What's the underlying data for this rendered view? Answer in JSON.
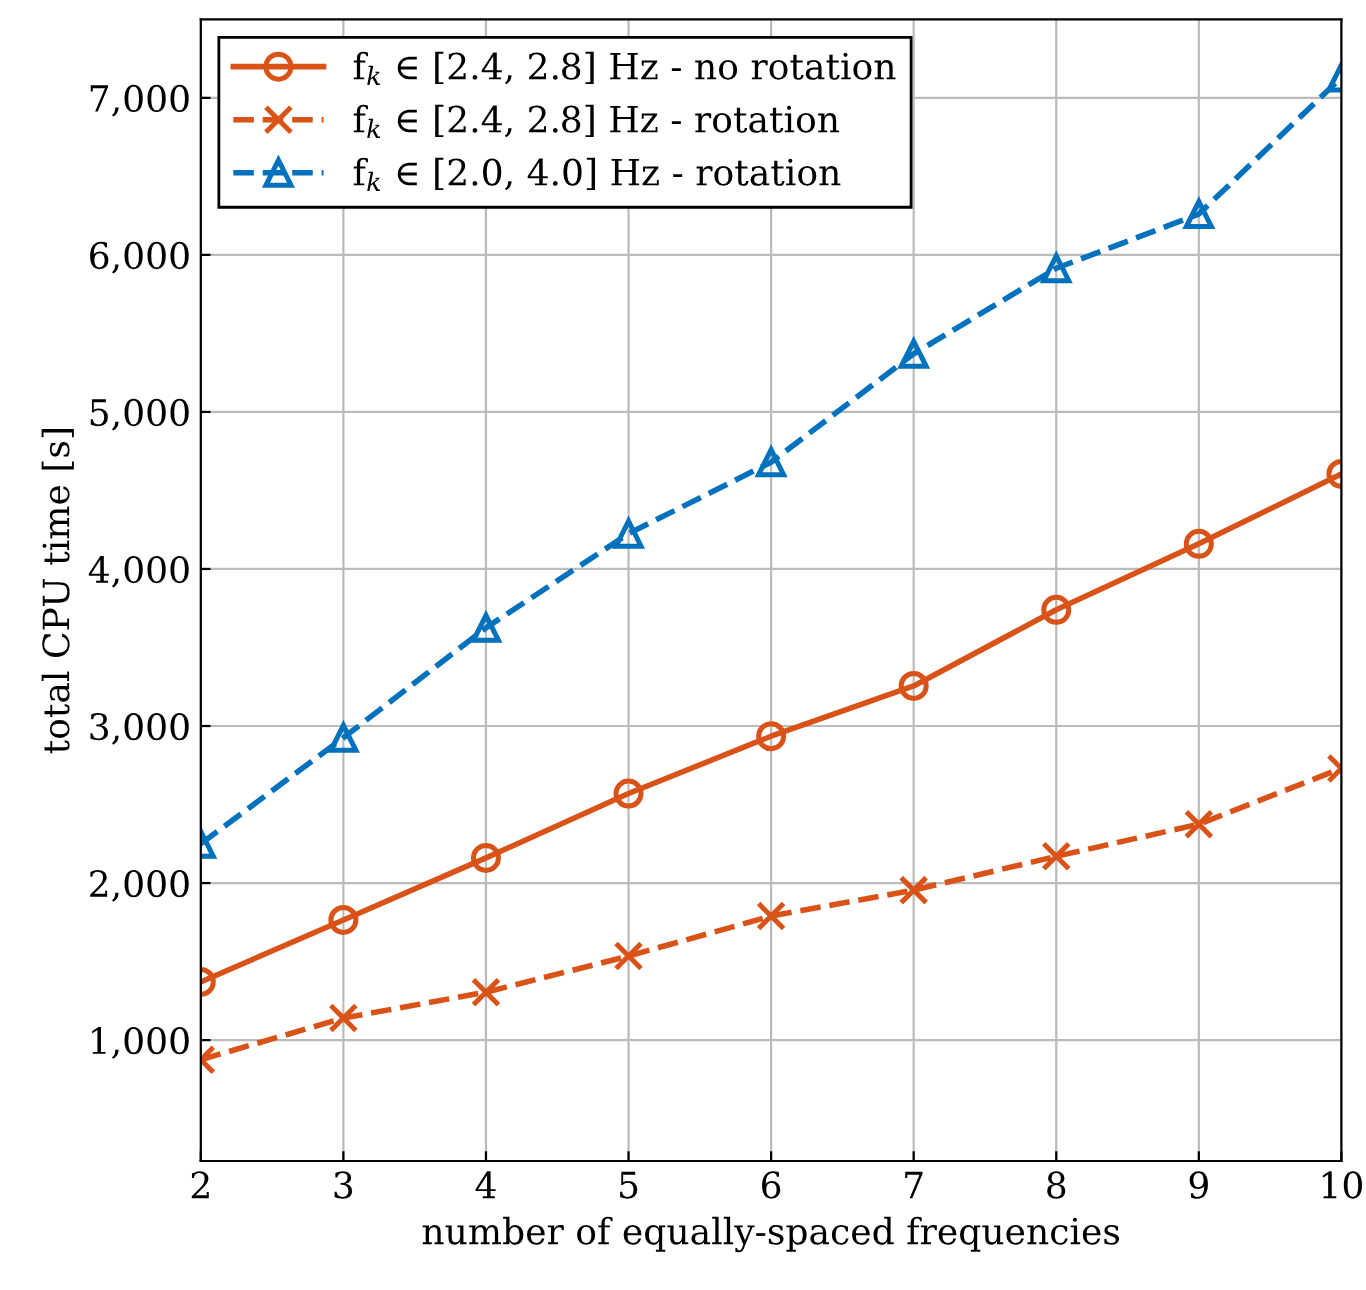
{
  "chart_data": {
    "type": "line",
    "xlabel": "number of equally-spaced frequencies",
    "ylabel": "total CPU time [s]",
    "x": [
      2,
      3,
      4,
      5,
      6,
      7,
      8,
      9,
      10
    ],
    "series": [
      {
        "name": "f$_{k}$ ∈ [2.4, 2.8] Hz - no rotation",
        "color": "#d95319",
        "marker": "circle",
        "line_style": "solid",
        "values": [
          1370,
          1765,
          2160,
          2570,
          2935,
          3255,
          3740,
          4160,
          4605
        ]
      },
      {
        "name": "f$_{k}$ ∈ [2.4, 2.8] Hz - rotation",
        "color": "#d95319",
        "marker": "cross",
        "line_style": "dashed",
        "values": [
          875,
          1140,
          1305,
          1535,
          1790,
          1955,
          2170,
          2375,
          2730
        ]
      },
      {
        "name": "f$_{k}$ ∈ [2.0, 4.0] Hz - rotation",
        "color": "#0072bd",
        "marker": "triangle",
        "line_style": "dashed",
        "values": [
          2250,
          2925,
          3625,
          4225,
          4680,
          5370,
          5915,
          6260,
          7130
        ]
      }
    ],
    "xlim": [
      2,
      10
    ],
    "ylim": [
      230,
      7500
    ],
    "xticks": [
      2,
      3,
      4,
      5,
      6,
      7,
      8,
      9,
      10
    ],
    "yticks": [
      {
        "value": 1000,
        "label": "1,000"
      },
      {
        "value": 2000,
        "label": "2,000"
      },
      {
        "value": 3000,
        "label": "3,000"
      },
      {
        "value": 4000,
        "label": "4,000"
      },
      {
        "value": 5000,
        "label": "5,000"
      },
      {
        "value": 6000,
        "label": "6,000"
      },
      {
        "value": 7000,
        "label": "7,000"
      }
    ],
    "grid": true,
    "legend": "top left"
  }
}
